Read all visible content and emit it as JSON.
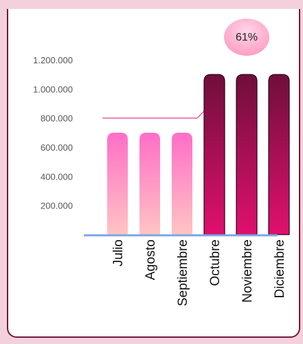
{
  "chart_data": {
    "type": "bar",
    "categories": [
      "Julio",
      "Agosto",
      "Septiembre",
      "Octubre",
      "Noviembre",
      "Diciembre"
    ],
    "values": [
      700000,
      700000,
      700000,
      1100000,
      1100000,
      1100000
    ],
    "yticks": [
      "1.200.000",
      "1.000.000",
      "800.000",
      "600.000",
      "400.000",
      "200.000"
    ],
    "ytick_values": [
      1200000,
      1000000,
      800000,
      600000,
      400000,
      200000
    ],
    "ylim": [
      0,
      1200000
    ],
    "reference_line": [
      800000,
      800000,
      800000,
      1100000,
      1100000,
      1100000
    ],
    "badge": "61%",
    "colors": {
      "bars_before": [
        "#ff6ec7",
        "#ffc4c4"
      ],
      "bars_after": [
        "#6e0f3a",
        "#e0106e"
      ],
      "line": "#e85aa8",
      "baseline": "#7ea6e0",
      "badge": [
        "#ff9ac0",
        "#ffd6e6"
      ]
    }
  }
}
